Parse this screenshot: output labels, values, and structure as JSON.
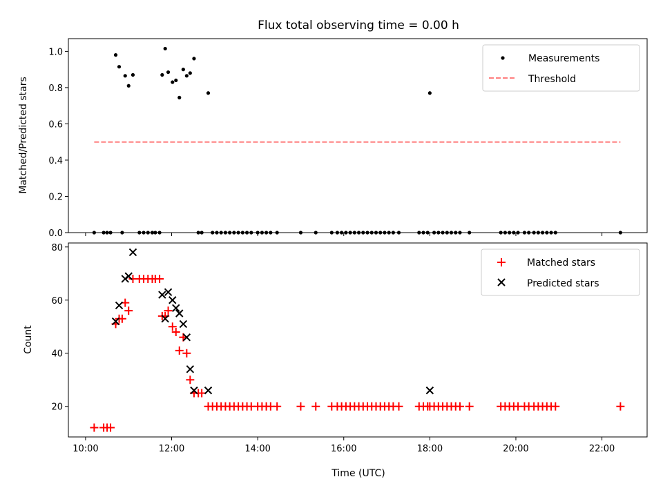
{
  "chart_data": [
    {
      "type": "scatter",
      "title": "Flux total observing time = 0.00 h",
      "xlabel": "",
      "ylabel": "Matched/Predicted stars",
      "xlim": [
        9.6,
        23.05
      ],
      "ylim": [
        0.0,
        1.07
      ],
      "yticks": [
        "0.0",
        "0.2",
        "0.4",
        "0.6",
        "0.8",
        "1.0"
      ],
      "ytick_values": [
        0.0,
        0.2,
        0.4,
        0.6,
        0.8,
        1.0
      ],
      "legend_position": "top-right",
      "colors": {
        "measurements": "#000000",
        "threshold": "#ff7f7f"
      },
      "series": [
        {
          "name": "Measurements",
          "marker": "dot",
          "points": [
            [
              10.2,
              0
            ],
            [
              10.42,
              0
            ],
            [
              10.5,
              0
            ],
            [
              10.58,
              0
            ],
            [
              10.7,
              0.98
            ],
            [
              10.78,
              0.915
            ],
            [
              10.85,
              0
            ],
            [
              10.92,
              0.865
            ],
            [
              11.0,
              0.81
            ],
            [
              11.1,
              0.87
            ],
            [
              11.25,
              0
            ],
            [
              11.35,
              0
            ],
            [
              11.45,
              0
            ],
            [
              11.55,
              0
            ],
            [
              11.62,
              0
            ],
            [
              11.72,
              0
            ],
            [
              11.78,
              0.87
            ],
            [
              11.85,
              1.015
            ],
            [
              11.92,
              0.885
            ],
            [
              12.02,
              0.83
            ],
            [
              12.1,
              0.84
            ],
            [
              12.18,
              0.745
            ],
            [
              12.27,
              0.9
            ],
            [
              12.35,
              0.865
            ],
            [
              12.43,
              0.88
            ],
            [
              12.52,
              0.96
            ],
            [
              12.62,
              0
            ],
            [
              12.7,
              0
            ],
            [
              12.85,
              0.77
            ],
            [
              12.95,
              0
            ],
            [
              13.05,
              0
            ],
            [
              13.15,
              0
            ],
            [
              13.25,
              0
            ],
            [
              13.35,
              0
            ],
            [
              13.45,
              0
            ],
            [
              13.55,
              0
            ],
            [
              13.65,
              0
            ],
            [
              13.75,
              0
            ],
            [
              13.85,
              0
            ],
            [
              14.0,
              0
            ],
            [
              14.1,
              0
            ],
            [
              14.2,
              0
            ],
            [
              14.3,
              0
            ],
            [
              14.45,
              0
            ],
            [
              15.0,
              0
            ],
            [
              15.35,
              0
            ],
            [
              15.72,
              0
            ],
            [
              15.85,
              0
            ],
            [
              15.95,
              0
            ],
            [
              16.05,
              0
            ],
            [
              16.15,
              0
            ],
            [
              16.25,
              0
            ],
            [
              16.35,
              0
            ],
            [
              16.45,
              0
            ],
            [
              16.55,
              0
            ],
            [
              16.65,
              0
            ],
            [
              16.75,
              0
            ],
            [
              16.85,
              0
            ],
            [
              16.95,
              0
            ],
            [
              17.05,
              0
            ],
            [
              17.15,
              0
            ],
            [
              17.28,
              0
            ],
            [
              17.75,
              0
            ],
            [
              17.85,
              0
            ],
            [
              17.95,
              0
            ],
            [
              18.0,
              0.77
            ],
            [
              18.1,
              0
            ],
            [
              18.2,
              0
            ],
            [
              18.3,
              0
            ],
            [
              18.4,
              0
            ],
            [
              18.5,
              0
            ],
            [
              18.6,
              0
            ],
            [
              18.7,
              0
            ],
            [
              18.92,
              0
            ],
            [
              19.65,
              0
            ],
            [
              19.75,
              0
            ],
            [
              19.85,
              0
            ],
            [
              19.95,
              0
            ],
            [
              20.05,
              0
            ],
            [
              20.2,
              0
            ],
            [
              20.3,
              0
            ],
            [
              20.42,
              0
            ],
            [
              20.52,
              0
            ],
            [
              20.62,
              0
            ],
            [
              20.72,
              0
            ],
            [
              20.82,
              0
            ],
            [
              20.92,
              0
            ],
            [
              22.43,
              0
            ]
          ]
        },
        {
          "name": "Threshold",
          "style": "dashed",
          "points": [
            [
              10.2,
              0.5
            ],
            [
              22.43,
              0.5
            ]
          ]
        }
      ]
    },
    {
      "type": "scatter",
      "title": "",
      "xlabel": "Time (UTC)",
      "ylabel": "Count",
      "xlim": [
        9.6,
        23.05
      ],
      "ylim": [
        8.5,
        81.5
      ],
      "xticks": [
        "10:00",
        "12:00",
        "14:00",
        "16:00",
        "18:00",
        "20:00",
        "22:00"
      ],
      "xtick_values": [
        10,
        12,
        14,
        16,
        18,
        20,
        22
      ],
      "yticks": [
        "20",
        "40",
        "60",
        "80"
      ],
      "ytick_values": [
        20,
        40,
        60,
        80
      ],
      "legend_position": "top-right",
      "colors": {
        "matched": "#ff0000",
        "predicted": "#000000"
      },
      "series": [
        {
          "name": "Matched stars",
          "marker": "plus",
          "points": [
            [
              10.2,
              12
            ],
            [
              10.42,
              12
            ],
            [
              10.5,
              12
            ],
            [
              10.58,
              12
            ],
            [
              10.7,
              51
            ],
            [
              10.78,
              53
            ],
            [
              10.85,
              53
            ],
            [
              10.92,
              59
            ],
            [
              11.0,
              56
            ],
            [
              11.1,
              68
            ],
            [
              11.25,
              68
            ],
            [
              11.35,
              68
            ],
            [
              11.45,
              68
            ],
            [
              11.55,
              68
            ],
            [
              11.62,
              68
            ],
            [
              11.72,
              68
            ],
            [
              11.78,
              54
            ],
            [
              11.85,
              54
            ],
            [
              11.92,
              56
            ],
            [
              12.02,
              50
            ],
            [
              12.1,
              48
            ],
            [
              12.18,
              41
            ],
            [
              12.27,
              46
            ],
            [
              12.35,
              40
            ],
            [
              12.43,
              30
            ],
            [
              12.52,
              25
            ],
            [
              12.62,
              25
            ],
            [
              12.7,
              25
            ],
            [
              12.85,
              20
            ],
            [
              12.95,
              20
            ],
            [
              13.05,
              20
            ],
            [
              13.15,
              20
            ],
            [
              13.25,
              20
            ],
            [
              13.35,
              20
            ],
            [
              13.45,
              20
            ],
            [
              13.55,
              20
            ],
            [
              13.65,
              20
            ],
            [
              13.75,
              20
            ],
            [
              13.85,
              20
            ],
            [
              14.0,
              20
            ],
            [
              14.1,
              20
            ],
            [
              14.2,
              20
            ],
            [
              14.3,
              20
            ],
            [
              14.45,
              20
            ],
            [
              15.0,
              20
            ],
            [
              15.35,
              20
            ],
            [
              15.72,
              20
            ],
            [
              15.85,
              20
            ],
            [
              15.95,
              20
            ],
            [
              16.05,
              20
            ],
            [
              16.15,
              20
            ],
            [
              16.25,
              20
            ],
            [
              16.35,
              20
            ],
            [
              16.45,
              20
            ],
            [
              16.55,
              20
            ],
            [
              16.65,
              20
            ],
            [
              16.75,
              20
            ],
            [
              16.85,
              20
            ],
            [
              16.95,
              20
            ],
            [
              17.05,
              20
            ],
            [
              17.15,
              20
            ],
            [
              17.28,
              20
            ],
            [
              17.75,
              20
            ],
            [
              17.85,
              20
            ],
            [
              17.95,
              20
            ],
            [
              18.0,
              20
            ],
            [
              18.1,
              20
            ],
            [
              18.2,
              20
            ],
            [
              18.3,
              20
            ],
            [
              18.4,
              20
            ],
            [
              18.5,
              20
            ],
            [
              18.6,
              20
            ],
            [
              18.7,
              20
            ],
            [
              18.92,
              20
            ],
            [
              19.65,
              20
            ],
            [
              19.75,
              20
            ],
            [
              19.85,
              20
            ],
            [
              19.95,
              20
            ],
            [
              20.05,
              20
            ],
            [
              20.2,
              20
            ],
            [
              20.3,
              20
            ],
            [
              20.42,
              20
            ],
            [
              20.52,
              20
            ],
            [
              20.62,
              20
            ],
            [
              20.72,
              20
            ],
            [
              20.82,
              20
            ],
            [
              20.92,
              20
            ],
            [
              22.43,
              20
            ]
          ]
        },
        {
          "name": "Predicted stars",
          "marker": "x",
          "points": [
            [
              10.7,
              52
            ],
            [
              10.78,
              58
            ],
            [
              10.92,
              68
            ],
            [
              11.0,
              69
            ],
            [
              11.1,
              78
            ],
            [
              11.78,
              62
            ],
            [
              11.85,
              53
            ],
            [
              11.92,
              63
            ],
            [
              12.02,
              60
            ],
            [
              12.1,
              57
            ],
            [
              12.18,
              55
            ],
            [
              12.27,
              51
            ],
            [
              12.35,
              46
            ],
            [
              12.43,
              34
            ],
            [
              12.52,
              26
            ],
            [
              12.85,
              26
            ],
            [
              18.0,
              26
            ]
          ]
        }
      ]
    }
  ]
}
